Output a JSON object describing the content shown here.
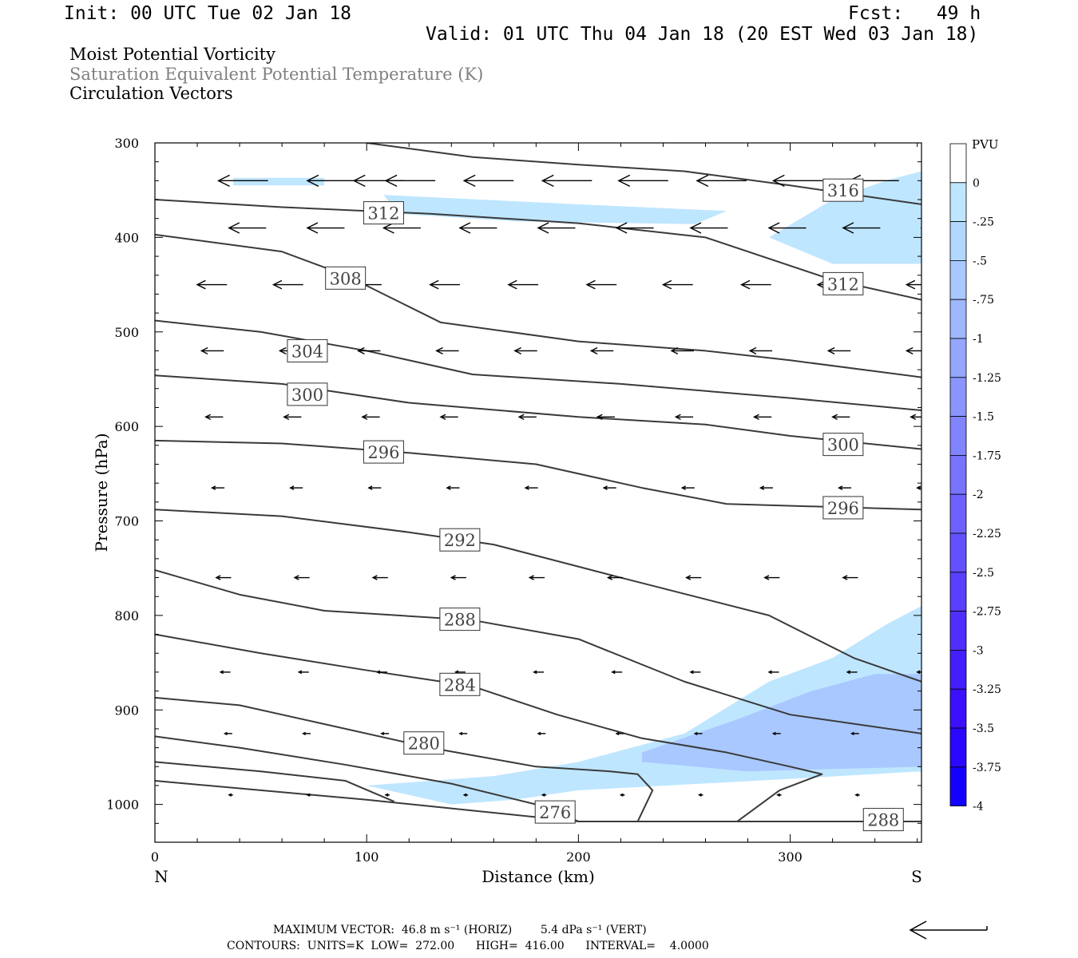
{
  "header": {
    "init": "Init: 00 UTC Tue 02 Jan 18",
    "fcst": "Fcst:   49 h",
    "valid": "Valid: 01 UTC Thu 04 Jan 18 (20 EST Wed 03 Jan 18)",
    "field1": "Moist Potential Vorticity",
    "field2": "Saturation Equivalent Potential Temperature (K)",
    "field3": "Circulation Vectors"
  },
  "footer": {
    "max_vector": "MAXIMUM VECTOR:  46.8 m s⁻¹ (HORIZ)        5.4 dPa s⁻¹ (VERT)",
    "contours": "CONTOURS:  UNITS=K  LOW=  272.00      HIGH=  416.00      INTERVAL=    4.0000"
  },
  "colors": {
    "contour": "#3a3a3a",
    "fill_weak": "#bfe6ff",
    "fill_mid": "#a9c8ff"
  },
  "chart_data": {
    "type": "contour",
    "xlabel": "Distance (km)",
    "ylabel": "Pressure (hPa)",
    "xlim": [
      0,
      362
    ],
    "ylim": [
      1040,
      300
    ],
    "x_ticks": [
      0,
      100,
      200,
      300
    ],
    "y_ticks": [
      300,
      400,
      500,
      600,
      700,
      800,
      900,
      1000
    ],
    "end_labels": {
      "left": "N",
      "right": "S"
    },
    "colorbar": {
      "title": "PVU",
      "labels": [
        "0",
        "-.25",
        "-.5",
        "-.75",
        "-1",
        "-1.25",
        "-1.5",
        "-1.75",
        "-2",
        "-2.25",
        "-2.5",
        "-2.75",
        "-3",
        "-3.25",
        "-3.5",
        "-3.75",
        "-4"
      ],
      "colors": [
        "#ffffff",
        "#bfe6ff",
        "#b2d8ff",
        "#a9c8ff",
        "#9fb7ff",
        "#95a6ff",
        "#8b95ff",
        "#8184ff",
        "#7773ff",
        "#6d62ff",
        "#6351ff",
        "#5940ff",
        "#4f2fff",
        "#451eff",
        "#3b10ff",
        "#2a08ff",
        "#1400ff"
      ]
    },
    "contours": [
      {
        "label": "316",
        "label_x": 325,
        "label_p": 350,
        "points": [
          [
            100,
            300
          ],
          [
            150,
            315
          ],
          [
            200,
            323
          ],
          [
            250,
            330
          ],
          [
            300,
            345
          ],
          [
            362,
            365
          ]
        ]
      },
      {
        "label": "312",
        "label_x": 108,
        "label_p": 374,
        "points": [
          [
            0,
            360
          ],
          [
            60,
            368
          ],
          [
            130,
            375
          ],
          [
            200,
            385
          ],
          [
            260,
            400
          ],
          [
            320,
            445
          ],
          [
            362,
            466
          ]
        ]
      },
      {
        "label": "312",
        "label_x": 325,
        "label_p": 449,
        "points": []
      },
      {
        "label": "308",
        "label_x": 90,
        "label_p": 443,
        "points": [
          [
            0,
            397
          ],
          [
            60,
            415
          ],
          [
            90,
            440
          ],
          [
            135,
            490
          ],
          [
            200,
            510
          ],
          [
            260,
            520
          ],
          [
            300,
            530
          ],
          [
            362,
            548
          ]
        ]
      },
      {
        "label": "304",
        "label_x": 72,
        "label_p": 520,
        "points": [
          [
            0,
            488
          ],
          [
            50,
            500
          ],
          [
            100,
            520
          ],
          [
            150,
            545
          ],
          [
            220,
            555
          ],
          [
            300,
            570
          ],
          [
            362,
            583
          ]
        ]
      },
      {
        "label": "300",
        "label_x": 72,
        "label_p": 566,
        "points": [
          [
            0,
            546
          ],
          [
            60,
            555
          ],
          [
            120,
            575
          ],
          [
            200,
            590
          ],
          [
            260,
            598
          ],
          [
            300,
            610
          ],
          [
            362,
            624
          ]
        ]
      },
      {
        "label": "300",
        "label_x": 325,
        "label_p": 619,
        "points": []
      },
      {
        "label": "296",
        "label_x": 108,
        "label_p": 627,
        "points": [
          [
            0,
            615
          ],
          [
            60,
            618
          ],
          [
            120,
            628
          ],
          [
            180,
            640
          ],
          [
            230,
            665
          ],
          [
            270,
            682
          ],
          [
            362,
            688
          ]
        ]
      },
      {
        "label": "296",
        "label_x": 325,
        "label_p": 686,
        "points": []
      },
      {
        "label": "292",
        "label_x": 144,
        "label_p": 720,
        "points": [
          [
            0,
            688
          ],
          [
            60,
            695
          ],
          [
            120,
            712
          ],
          [
            160,
            725
          ],
          [
            220,
            760
          ],
          [
            290,
            800
          ],
          [
            330,
            845
          ],
          [
            362,
            870
          ]
        ]
      },
      {
        "label": "288",
        "label_x": 144,
        "label_p": 804,
        "points": [
          [
            0,
            752
          ],
          [
            40,
            778
          ],
          [
            80,
            795
          ],
          [
            150,
            805
          ],
          [
            200,
            825
          ],
          [
            250,
            870
          ],
          [
            300,
            905
          ],
          [
            362,
            925
          ]
        ]
      },
      {
        "label": "284",
        "label_x": 144,
        "label_p": 873,
        "points": [
          [
            0,
            820
          ],
          [
            50,
            840
          ],
          [
            100,
            858
          ],
          [
            150,
            875
          ],
          [
            190,
            905
          ],
          [
            230,
            930
          ],
          [
            270,
            945
          ],
          [
            300,
            960
          ],
          [
            315,
            968
          ],
          [
            295,
            985
          ],
          [
            275,
            1018
          ]
        ]
      },
      {
        "label": "280",
        "label_x": 127,
        "label_p": 935,
        "points": [
          [
            0,
            887
          ],
          [
            40,
            895
          ],
          [
            80,
            915
          ],
          [
            130,
            940
          ],
          [
            180,
            960
          ],
          [
            215,
            965
          ],
          [
            228,
            968
          ],
          [
            235,
            985
          ],
          [
            228,
            1018
          ]
        ]
      },
      {
        "label": "276",
        "label_x": 189,
        "label_p": 1008,
        "points": [
          [
            0,
            928
          ],
          [
            40,
            940
          ],
          [
            90,
            958
          ],
          [
            140,
            978
          ],
          [
            180,
            1000
          ],
          [
            200,
            1018
          ]
        ]
      },
      {
        "label": "",
        "label_x": 0,
        "label_p": 0,
        "points": [
          [
            0,
            955
          ],
          [
            50,
            965
          ],
          [
            90,
            975
          ],
          [
            113,
            997
          ]
        ]
      },
      {
        "label": "",
        "label_x": 0,
        "label_p": 0,
        "points": [
          [
            0,
            975
          ],
          [
            100,
            995
          ],
          [
            200,
            1018
          ],
          [
            362,
            1018
          ]
        ]
      },
      {
        "label": "288",
        "label_x": 344,
        "label_p": 1016,
        "points": []
      }
    ],
    "shaded_regions": [
      {
        "pvu": "-.25",
        "color": "#bfe6ff",
        "points": [
          [
            37,
            337
          ],
          [
            80,
            337
          ],
          [
            80,
            345
          ],
          [
            37,
            345
          ]
        ]
      },
      {
        "pvu": "-.25",
        "color": "#bfe6ff",
        "points": [
          [
            108,
            355
          ],
          [
            200,
            365
          ],
          [
            270,
            372
          ],
          [
            255,
            386
          ],
          [
            170,
            383
          ],
          [
            115,
            375
          ]
        ]
      },
      {
        "pvu": "-.25",
        "color": "#bfe6ff",
        "points": [
          [
            290,
            400
          ],
          [
            320,
            360
          ],
          [
            345,
            340
          ],
          [
            362,
            330
          ],
          [
            362,
            428
          ],
          [
            320,
            428
          ]
        ]
      },
      {
        "pvu": "-.25",
        "color": "#bfe6ff",
        "points": [
          [
            100,
            980
          ],
          [
            160,
            970
          ],
          [
            200,
            955
          ],
          [
            250,
            925
          ],
          [
            290,
            870
          ],
          [
            320,
            845
          ],
          [
            345,
            810
          ],
          [
            362,
            790
          ],
          [
            362,
            965
          ],
          [
            300,
            973
          ],
          [
            200,
            985
          ],
          [
            170,
            995
          ],
          [
            140,
            1000
          ],
          [
            120,
            990
          ]
        ]
      },
      {
        "pvu": "-.5",
        "color": "#a9c8ff",
        "points": [
          [
            230,
            945
          ],
          [
            275,
            910
          ],
          [
            310,
            880
          ],
          [
            340,
            862
          ],
          [
            362,
            862
          ],
          [
            362,
            960
          ],
          [
            280,
            965
          ],
          [
            230,
            955
          ]
        ]
      }
    ],
    "vectors": [
      {
        "p": 340,
        "u": -1.0,
        "xs": [
          30,
          72,
          94,
          109,
          146,
          183,
          219,
          256,
          292,
          328,
          362
        ]
      },
      {
        "p": 390,
        "u": -0.75,
        "xs": [
          35,
          72,
          108,
          144,
          181,
          218,
          253,
          290,
          325,
          362
        ]
      },
      {
        "p": 450,
        "u": -0.6,
        "xs": [
          20,
          56,
          93,
          130,
          167,
          204,
          240,
          277,
          313,
          355
        ]
      },
      {
        "p": 520,
        "u": -0.45,
        "xs": [
          22,
          59,
          96,
          133,
          170,
          206,
          244,
          281,
          318,
          355
        ]
      },
      {
        "p": 590,
        "u": -0.35,
        "xs": [
          24,
          61,
          98,
          135,
          172,
          209,
          246,
          283,
          320,
          357
        ]
      },
      {
        "p": 665,
        "u": -0.25,
        "xs": [
          27,
          64,
          101,
          138,
          175,
          212,
          249,
          286,
          323,
          360
        ]
      },
      {
        "p": 760,
        "u": -0.3,
        "xs": [
          29,
          66,
          103,
          140,
          177,
          214,
          251,
          288,
          325,
          362
        ]
      },
      {
        "p": 860,
        "u": -0.2,
        "xs": [
          31,
          68,
          105,
          142,
          179,
          216,
          253,
          290,
          327,
          360
        ]
      },
      {
        "p": 925,
        "u": -0.15,
        "xs": [
          33,
          70,
          107,
          144,
          181,
          218,
          255,
          292,
          329
        ]
      },
      {
        "p": 990,
        "u": -0.08,
        "xs": [
          35,
          72,
          109,
          146,
          183,
          220,
          257,
          294,
          331
        ]
      }
    ]
  }
}
